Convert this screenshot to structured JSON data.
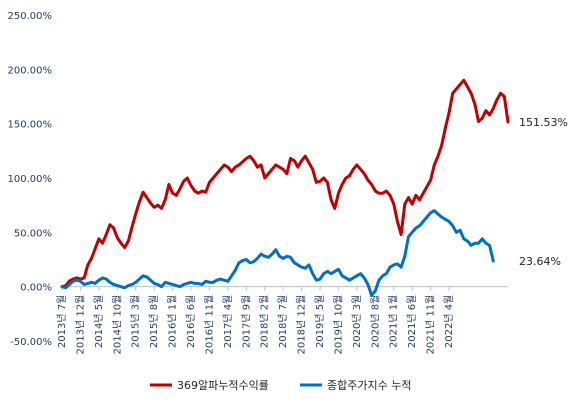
{
  "chart_data": {
    "type": "line",
    "title": "",
    "xlabel": "",
    "ylabel": "",
    "ylim": [
      -50,
      250
    ],
    "y_ticks": [
      "-50.00%",
      "0.00%",
      "50.00%",
      "100.00%",
      "150.00%",
      "200.00%",
      "250.00%"
    ],
    "y_tick_values": [
      -50,
      0,
      50,
      100,
      150,
      200,
      250
    ],
    "grid": false,
    "legend_position": "bottom",
    "x_tick_labels": [
      "2013년 7월",
      "2013년 12월",
      "2014년 5월",
      "2014년 10월",
      "2015년 3월",
      "2015년 8월",
      "2016년 1월",
      "2016년 6월",
      "2016년 11월",
      "2017년 4월",
      "2017년 9월",
      "2018년 2월",
      "2018년 7월",
      "2018년 12월",
      "2019년 5월",
      "2019년 10월",
      "2020년 3월",
      "2020년 8월",
      "2021년 1월",
      "2021년 6월",
      "2021년 11월",
      "2022년 4월"
    ],
    "series": [
      {
        "name": "369알파누적수익률",
        "color": "#c00000",
        "end_label": "151.53%",
        "values": [
          0,
          1,
          5,
          7,
          8,
          7,
          8,
          20,
          26,
          35,
          44,
          40,
          48,
          57,
          54,
          45,
          40,
          36,
          42,
          55,
          67,
          78,
          87,
          82,
          77,
          73,
          75,
          72,
          80,
          94,
          86,
          84,
          90,
          97,
          100,
          93,
          88,
          86,
          88,
          87,
          96,
          100,
          104,
          108,
          112,
          110,
          106,
          110,
          112,
          115,
          118,
          120,
          116,
          110,
          112,
          100,
          104,
          108,
          112,
          110,
          108,
          104,
          118,
          116,
          110,
          116,
          120,
          114,
          108,
          96,
          97,
          100,
          96,
          80,
          72,
          86,
          94,
          100,
          102,
          108,
          112,
          108,
          104,
          98,
          94,
          88,
          86,
          86,
          88,
          84,
          76,
          60,
          48,
          76,
          82,
          76,
          84,
          80,
          86,
          92,
          98,
          112,
          120,
          130,
          146,
          160,
          178,
          182,
          186,
          190,
          184,
          178,
          168,
          152,
          155,
          162,
          158,
          164,
          172,
          178,
          175,
          151.53
        ]
      },
      {
        "name": "종합주가지수 누적",
        "color": "#0070c0",
        "end_label": "23.64%",
        "values": [
          0,
          -1,
          2,
          5,
          6,
          5,
          2,
          3,
          4,
          3,
          6,
          8,
          7,
          4,
          2,
          1,
          0,
          -1,
          1,
          2,
          4,
          7,
          10,
          9,
          6,
          3,
          2,
          0,
          4,
          3,
          2,
          1,
          0,
          2,
          3,
          4,
          3,
          3,
          2,
          5,
          4,
          4,
          6,
          7,
          6,
          5,
          10,
          15,
          22,
          24,
          25,
          22,
          23,
          26,
          30,
          28,
          27,
          30,
          34,
          28,
          26,
          28,
          27,
          22,
          20,
          18,
          17,
          20,
          12,
          6,
          7,
          12,
          14,
          12,
          14,
          16,
          10,
          8,
          6,
          8,
          10,
          12,
          8,
          2,
          -8,
          -4,
          6,
          10,
          12,
          18,
          20,
          21,
          18,
          28,
          46,
          50,
          54,
          56,
          60,
          64,
          68,
          70,
          67,
          64,
          62,
          60,
          56,
          50,
          52,
          44,
          42,
          38,
          40,
          40,
          44,
          40,
          38,
          23.64
        ]
      }
    ]
  }
}
